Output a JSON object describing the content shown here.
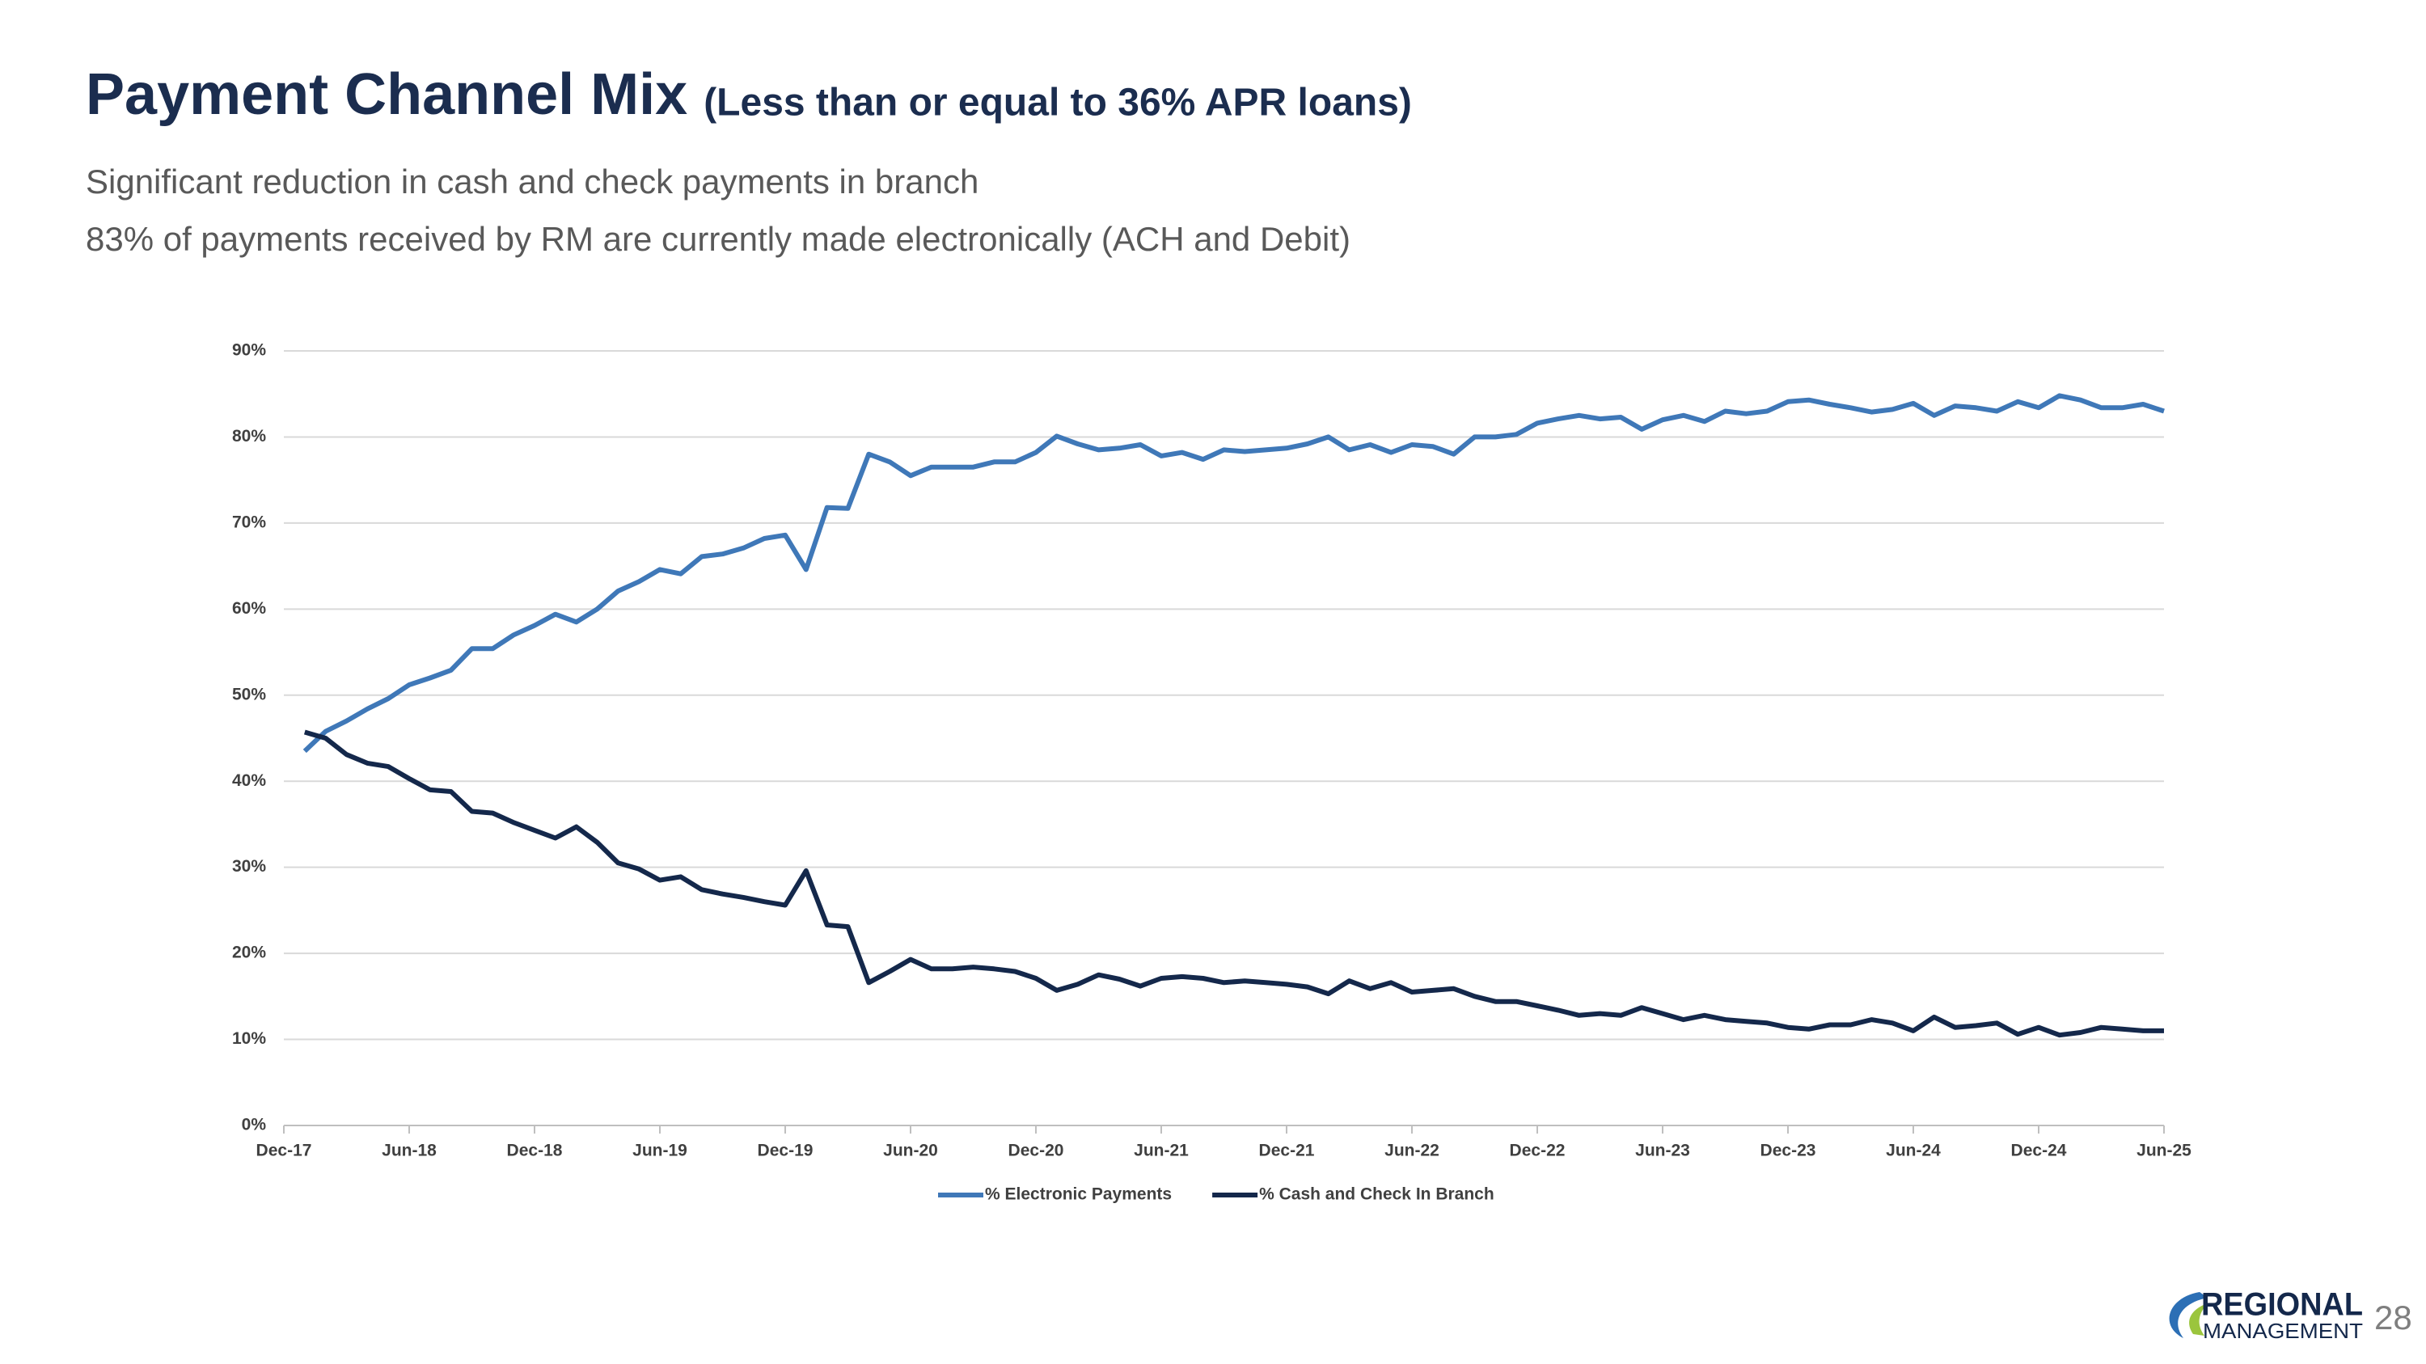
{
  "header": {
    "title": "Payment Channel Mix",
    "title_note": "(Less than or equal to 36% APR loans)",
    "lines": [
      "Significant reduction in cash and check payments in branch",
      "83% of payments received by RM are currently made electronically (ACH and Debit)"
    ]
  },
  "chart_data": {
    "type": "line",
    "categories": [
      "Dec-17",
      null,
      null,
      null,
      null,
      null,
      "Jun-18",
      null,
      null,
      null,
      null,
      null,
      "Dec-18",
      null,
      null,
      null,
      null,
      null,
      "Jun-19",
      null,
      null,
      null,
      null,
      null,
      "Dec-19",
      null,
      null,
      null,
      null,
      null,
      "Jun-20",
      null,
      null,
      null,
      null,
      null,
      "Dec-20",
      null,
      null,
      null,
      null,
      null,
      "Jun-21",
      null,
      null,
      null,
      null,
      null,
      "Dec-21",
      null,
      null,
      null,
      null,
      null,
      "Jun-22",
      null,
      null,
      null,
      null,
      null,
      "Dec-22",
      null,
      null,
      null,
      null,
      null,
      "Jun-23",
      null,
      null,
      null,
      null,
      null,
      "Dec-23",
      null,
      null,
      null,
      null,
      null,
      "Jun-24",
      null,
      null,
      null,
      null,
      null,
      "Dec-24",
      null,
      null,
      null,
      null,
      null,
      "Jun-25"
    ],
    "series": [
      {
        "name": "% Electronic Payments",
        "color": "#3f78b8",
        "values": [
          null,
          43.5,
          45.8,
          47,
          48.4,
          49.6,
          51.2,
          52,
          52.9,
          55.4,
          55.4,
          57,
          58.1,
          59.4,
          58.5,
          60,
          62.1,
          63.2,
          64.6,
          64.1,
          66.1,
          66.4,
          67.1,
          68.2,
          68.6,
          64.6,
          71.8,
          71.7,
          78,
          77.1,
          75.5,
          76.5,
          76.5,
          76.5,
          77.1,
          77.1,
          78.2,
          80.1,
          79.2,
          78.5,
          78.7,
          79.1,
          77.8,
          78.2,
          77.4,
          78.5,
          78.3,
          78.5,
          78.7,
          79.2,
          80,
          78.5,
          79.1,
          78.2,
          79.1,
          78.9,
          78,
          80,
          80,
          80.3,
          81.6,
          82.1,
          82.5,
          82.1,
          82.3,
          80.9,
          82,
          82.5,
          81.8,
          83,
          82.7,
          83,
          84.1,
          84.3,
          83.8,
          83.4,
          82.9,
          83.2,
          83.9,
          82.5,
          83.6,
          83.4,
          83,
          84.1,
          83.4,
          84.8,
          84.3,
          83.4,
          83.4,
          83.8,
          83
        ]
      },
      {
        "name": "% Cash and Check In Branch",
        "color": "#14284b",
        "values": [
          null,
          45.7,
          45,
          43.1,
          42.1,
          41.7,
          40.3,
          39,
          38.8,
          36.5,
          36.3,
          35.2,
          34.3,
          33.4,
          34.7,
          32.9,
          30.5,
          29.8,
          28.5,
          28.9,
          27.4,
          26.9,
          26.5,
          26,
          25.6,
          29.6,
          23.3,
          23.1,
          16.6,
          17.9,
          19.3,
          18.2,
          18.2,
          18.4,
          18.2,
          17.9,
          17.1,
          15.7,
          16.4,
          17.5,
          17,
          16.2,
          17.1,
          17.3,
          17.1,
          16.6,
          16.8,
          16.6,
          16.4,
          16.1,
          15.3,
          16.8,
          15.9,
          16.6,
          15.5,
          15.7,
          15.9,
          15,
          14.4,
          14.4,
          13.9,
          13.4,
          12.8,
          13,
          12.8,
          13.7,
          13,
          12.3,
          12.8,
          12.3,
          12.1,
          11.9,
          11.4,
          11.2,
          11.7,
          11.7,
          12.3,
          11.9,
          11,
          12.6,
          11.4,
          11.6,
          11.9,
          10.6,
          11.4,
          10.5,
          10.8,
          11.4,
          11.2,
          11,
          11
        ]
      }
    ],
    "ylim": [
      0,
      90
    ],
    "yticks": [
      {
        "value": 0,
        "label": "0%"
      },
      {
        "value": 10,
        "label": "10%"
      },
      {
        "value": 20,
        "label": "20%"
      },
      {
        "value": 30,
        "label": "30%"
      },
      {
        "value": 40,
        "label": "40%"
      },
      {
        "value": 50,
        "label": "50%"
      },
      {
        "value": 60,
        "label": "60%"
      },
      {
        "value": 70,
        "label": "70%"
      },
      {
        "value": 80,
        "label": "80%"
      },
      {
        "value": 90,
        "label": "90%"
      }
    ],
    "grid": true,
    "legend": "bottom"
  },
  "footer": {
    "logo_top": "REGIONAL",
    "logo_bottom": "MANAGEMENT",
    "page_number": "28"
  }
}
